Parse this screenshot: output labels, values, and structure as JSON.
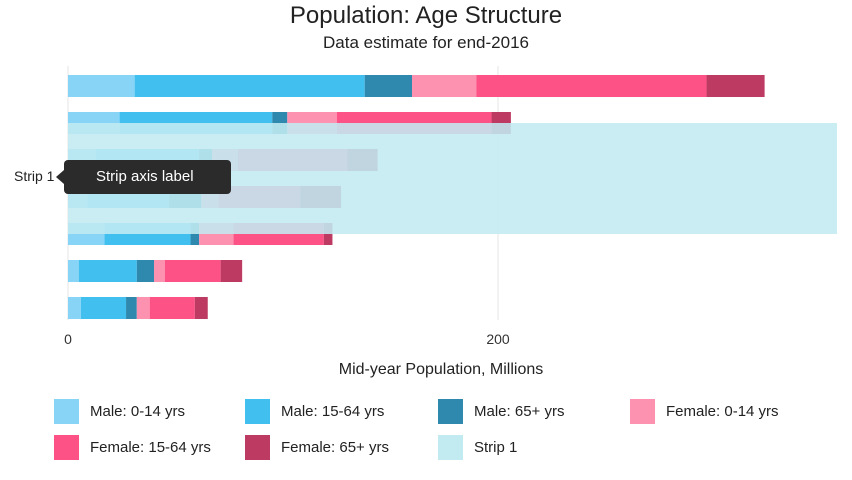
{
  "chart_data": {
    "type": "bar",
    "orientation": "horizontal",
    "stacked": true,
    "title": "Population: Age Structure",
    "subtitle": "Data estimate for end-2016",
    "xlabel": "Mid-year Population, Millions",
    "ylabel": "",
    "xlim": [
      0,
      360
    ],
    "xticks": [
      0,
      200
    ],
    "grid": true,
    "legend_position": "bottom",
    "categories": [
      "",
      "",
      "",
      "",
      "",
      "",
      ""
    ],
    "series": [
      {
        "name": "Male: 0-14 yrs",
        "color": "#87d4f7",
        "values": [
          31,
          24,
          13,
          9,
          17,
          5,
          6
        ]
      },
      {
        "name": "Male: 15-64 yrs",
        "color": "#41c0f0",
        "values": [
          107,
          71,
          48,
          38,
          40,
          27,
          21
        ]
      },
      {
        "name": "Male: 65+ yrs",
        "color": "#2f88ad",
        "values": [
          22,
          7,
          6,
          15,
          4,
          8,
          5
        ]
      },
      {
        "name": "Female: 0-14 yrs",
        "color": "#fd92b0",
        "values": [
          30,
          23,
          12,
          8,
          16,
          5,
          6
        ]
      },
      {
        "name": "Female: 15-64 yrs",
        "color": "#fd5285",
        "values": [
          107,
          72,
          51,
          38,
          42,
          26,
          21
        ]
      },
      {
        "name": "Female: 65+ yrs",
        "color": "#bd3a62",
        "values": [
          27,
          9,
          14,
          19,
          4,
          10,
          6
        ]
      }
    ],
    "strip": {
      "name": "Strip 1",
      "color": "#c2eaf1",
      "from": 0,
      "to": 360,
      "rows": [
        1,
        4
      ]
    },
    "tooltip": {
      "axis_tag": "Strip 1",
      "text": "Strip axis label"
    }
  }
}
